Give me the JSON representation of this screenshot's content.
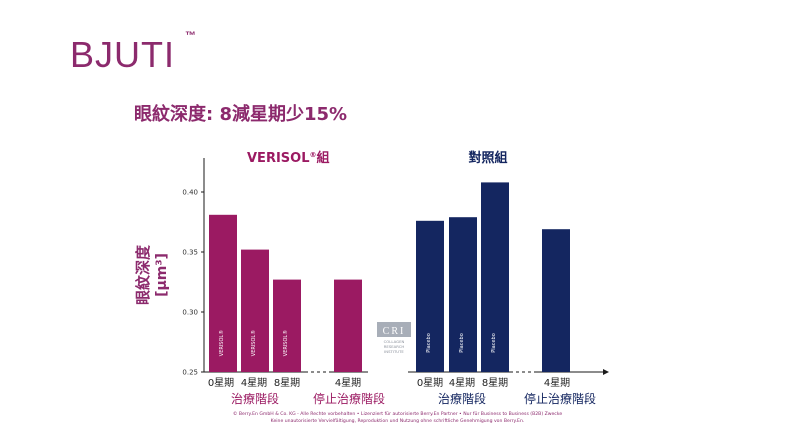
{
  "brand": {
    "name": "BJUTI",
    "trademark": "™"
  },
  "headline": "眼紋深度: 8減星期少15%",
  "colors": {
    "accent": "#8c2a6d",
    "verisol": "#9b1a62",
    "placebo": "#142660",
    "axis": "#1a1a1a"
  },
  "chart_data": {
    "type": "bar",
    "ylabel": "眼紋深度 [µm³]",
    "ylabel_line1": "眼紋深度",
    "ylabel_line2": "[µm³]",
    "ylim": [
      0.25,
      0.43
    ],
    "yticks": [
      "0.25",
      "0.30",
      "0.35",
      "0.40"
    ],
    "grid": false,
    "groups": [
      {
        "name": "VERISOL®組",
        "name_main": "VERISOL",
        "name_sup": "®",
        "name_suffix": "組",
        "color": "#9b1a62",
        "treatment_label": "治療階段",
        "stop_label": "停止治療階段",
        "categories": [
          "0星期",
          "4星期",
          "8星期",
          "4星期"
        ],
        "values": [
          0.381,
          0.352,
          0.327,
          0.327
        ],
        "bar_labels": [
          "VERISOL®",
          "VERISOL®",
          "VERISOL®",
          ""
        ]
      },
      {
        "name": "對照組",
        "color": "#142660",
        "treatment_label": "治療階段",
        "stop_label": "停止治療階段",
        "categories": [
          "0星期",
          "4星期",
          "8星期",
          "4星期"
        ],
        "values": [
          0.376,
          0.379,
          0.408,
          0.369
        ],
        "bar_labels": [
          "Placebo",
          "Placebo",
          "Placebo",
          ""
        ]
      }
    ]
  },
  "cri_logo": {
    "initials": "CRI",
    "line1": "COLLAGEN",
    "line2": "RESEARCH",
    "line3": "INSTITUTE"
  },
  "footer": {
    "line1": "© Berry.En GmbH & Co. KG - Alle Rechte vorbehalten • Lizenziert für autorisierte Berry.En Partner • Nur für Business to Business (B2B) Zwecke",
    "line2": "Keine unautorisierte Vervielfältigung, Reproduktion und Nutzung ohne schriftliche Genehmigung von Berry.En."
  }
}
